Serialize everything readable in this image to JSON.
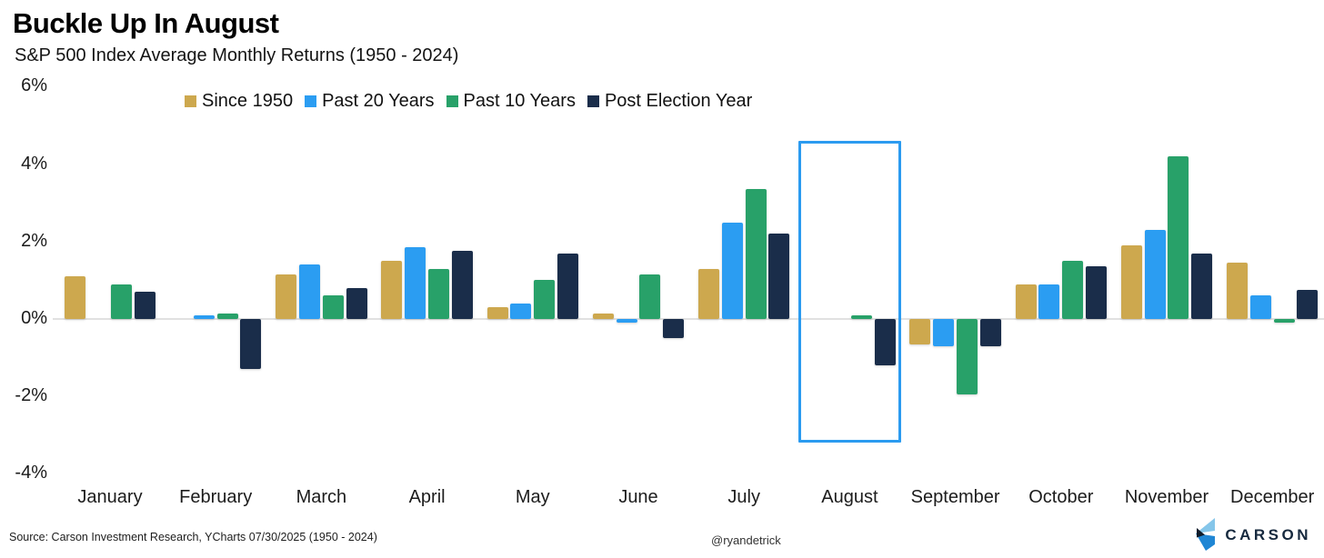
{
  "header": {
    "title": "Buckle Up In August",
    "subtitle": "S&P 500 Index Average Monthly Returns (1950 - 2024)"
  },
  "chart_data": {
    "type": "bar",
    "title": "Buckle Up In August",
    "subtitle": "S&P 500 Index Average Monthly Returns (1950 - 2024)",
    "categories": [
      "January",
      "February",
      "March",
      "April",
      "May",
      "June",
      "July",
      "August",
      "September",
      "October",
      "November",
      "December"
    ],
    "series": [
      {
        "name": "Since 1950",
        "color": "#cda84e",
        "values": [
          1.1,
          0.0,
          1.15,
          1.5,
          0.3,
          0.15,
          1.3,
          0.0,
          -0.65,
          0.9,
          1.9,
          1.45
        ]
      },
      {
        "name": "Past 20 Years",
        "color": "#2b9df2",
        "values": [
          0.0,
          0.1,
          1.4,
          1.85,
          0.4,
          -0.1,
          2.5,
          0.0,
          -0.7,
          0.9,
          2.3,
          0.6
        ]
      },
      {
        "name": "Past 10 Years",
        "color": "#28a169",
        "values": [
          0.9,
          0.15,
          0.6,
          1.3,
          1.0,
          1.15,
          3.35,
          0.1,
          -1.95,
          1.5,
          4.2,
          -0.1
        ]
      },
      {
        "name": "Post Election Year",
        "color": "#1a2d4a",
        "values": [
          0.7,
          -1.3,
          0.8,
          1.75,
          1.7,
          -0.5,
          2.2,
          -1.2,
          -0.7,
          1.35,
          1.7,
          0.75
        ]
      }
    ],
    "ylabel": "",
    "xlabel": "",
    "ylim": [
      -4,
      6
    ],
    "y_ticks": [
      {
        "value": 6,
        "label": "6%"
      },
      {
        "value": 4,
        "label": "4%"
      },
      {
        "value": 2,
        "label": "2%"
      },
      {
        "value": 0,
        "label": "0%"
      },
      {
        "value": -2,
        "label": "-2%"
      },
      {
        "value": -4,
        "label": "-4%"
      }
    ],
    "grid": "zero-line-only",
    "legend_position": "top",
    "highlight": {
      "month": "August",
      "month_index": 7,
      "border_color": "#2b9bf0",
      "value_top": 4.6,
      "value_bottom": -3.2
    }
  },
  "footer": {
    "source": "Source: Carson Investment Research, YCharts 07/30/2025 (1950 - 2024)",
    "handle": "@ryandetrick",
    "brand": "CARSON"
  },
  "icons": {
    "carson_logo": "carson-chevron-logo"
  },
  "colors": {
    "since_1950": "#cda84e",
    "past_20_years": "#2b9df2",
    "past_10_years": "#28a169",
    "post_election_year": "#1a2d4a",
    "highlight_border": "#2b9bf0",
    "zero_line": "#e1e1e1",
    "brand_navy": "#16293e",
    "brand_light_blue": "#85c6ea",
    "brand_blue": "#1f86d4"
  }
}
